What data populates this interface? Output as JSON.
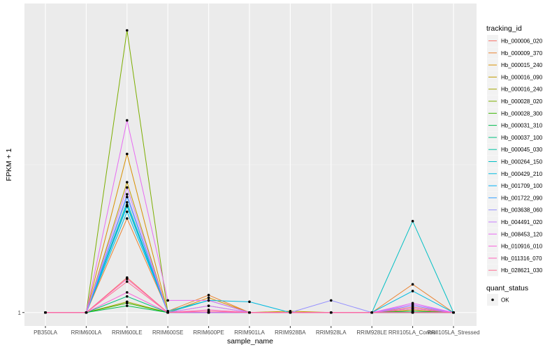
{
  "chart_data": {
    "type": "line",
    "xlabel": "sample_name",
    "ylabel": "FPKM + 1",
    "categories": [
      "PB350LA",
      "RRIM600LA",
      "RRIM600LE",
      "RRIM600SE",
      "RRIM600PE",
      "RRIM901LA",
      "RRIM928BA",
      "RRIM928LA",
      "RRIM928LE",
      "RRII105LA_Control",
      "RRII105LA_Stressed"
    ],
    "y_tick_labels": [
      "1"
    ],
    "y_ticks": [
      1
    ],
    "ylim": [
      0,
      24
    ],
    "grid": true,
    "background": "#ebebeb",
    "legend_placement": "right",
    "legend": {
      "title": "tracking_id",
      "entries": [
        "Hb_000006_020",
        "Hb_000009_370",
        "Hb_000015_240",
        "Hb_000016_090",
        "Hb_000016_240",
        "Hb_000028_020",
        "Hb_000028_300",
        "Hb_000031_310",
        "Hb_000037_100",
        "Hb_000045_030",
        "Hb_000264_150",
        "Hb_000429_210",
        "Hb_001709_100",
        "Hb_001722_090",
        "Hb_003638_060",
        "Hb_004491_020",
        "Hb_008453_120",
        "Hb_010916_010",
        "Hb_011316_070",
        "Hb_028621_030"
      ]
    },
    "shape_legend": {
      "title": "quant_status",
      "entries": [
        "OK"
      ]
    },
    "series": [
      {
        "name": "Hb_000006_020",
        "color": "#F8766D",
        "values": [
          1,
          1,
          3.6,
          1,
          1.5,
          1,
          1,
          1,
          1,
          1.4,
          1
        ]
      },
      {
        "name": "Hb_000009_370",
        "color": "#EA8331",
        "values": [
          1,
          1,
          8.0,
          1.1,
          2.3,
          1,
          1,
          1,
          1,
          3.1,
          1
        ]
      },
      {
        "name": "Hb_000015_240",
        "color": "#D89000",
        "values": [
          1,
          1,
          12.8,
          1,
          2.1,
          1,
          1,
          1,
          1,
          1.2,
          1
        ]
      },
      {
        "name": "Hb_000016_090",
        "color": "#C09B00",
        "values": [
          1,
          1,
          10.7,
          1,
          1,
          1,
          1.1,
          1,
          1,
          1.1,
          1
        ]
      },
      {
        "name": "Hb_000016_240",
        "color": "#A3A500",
        "values": [
          1,
          1,
          1.8,
          1,
          1,
          1,
          1,
          1,
          1,
          1,
          1
        ]
      },
      {
        "name": "Hb_000028_020",
        "color": "#7CAE00",
        "values": [
          1,
          1,
          22.0,
          1,
          1,
          1,
          1,
          1,
          1,
          1,
          1
        ]
      },
      {
        "name": "Hb_000028_300",
        "color": "#39B600",
        "values": [
          1,
          1,
          1.7,
          1,
          1,
          1,
          1,
          1,
          1,
          1,
          1
        ]
      },
      {
        "name": "Hb_000031_310",
        "color": "#00BB4E",
        "values": [
          1,
          1,
          1.5,
          1,
          1,
          1,
          1,
          1,
          1,
          1.1,
          1
        ]
      },
      {
        "name": "Hb_000037_100",
        "color": "#00BF7D",
        "values": [
          1,
          1,
          2.2,
          1,
          1,
          1,
          1,
          1,
          1,
          1,
          1
        ]
      },
      {
        "name": "Hb_000045_030",
        "color": "#00C1A3",
        "values": [
          1,
          1,
          9.2,
          1,
          1,
          1,
          1,
          1,
          1,
          1,
          1
        ]
      },
      {
        "name": "Hb_000264_150",
        "color": "#00BFC4",
        "values": [
          1,
          1,
          8.9,
          1,
          1.9,
          1,
          1,
          1,
          1,
          7.8,
          1
        ]
      },
      {
        "name": "Hb_000429_210",
        "color": "#00BAE0",
        "values": [
          1,
          1,
          8.5,
          1.1,
          1.9,
          1.8,
          1,
          1,
          1,
          2.6,
          1
        ]
      },
      {
        "name": "Hb_001709_100",
        "color": "#00B0F6",
        "values": [
          1,
          1,
          9.0,
          1,
          1,
          1,
          1,
          1,
          1,
          1,
          1
        ]
      },
      {
        "name": "Hb_001722_090",
        "color": "#35A2FF",
        "values": [
          1,
          1,
          9.6,
          1,
          1,
          1,
          1,
          1,
          1,
          1.3,
          1
        ]
      },
      {
        "name": "Hb_003638_060",
        "color": "#9590FF",
        "values": [
          1,
          1,
          9.8,
          1,
          1,
          1,
          1,
          1.9,
          1,
          1.5,
          1
        ]
      },
      {
        "name": "Hb_004491_020",
        "color": "#C77CFF",
        "values": [
          1,
          1,
          10.3,
          1,
          1.5,
          1,
          1,
          1,
          1,
          1.6,
          1
        ]
      },
      {
        "name": "Hb_008453_120",
        "color": "#E76BF3",
        "values": [
          1,
          1,
          15.3,
          1.9,
          1.9,
          1,
          1,
          1,
          1,
          1.7,
          1
        ]
      },
      {
        "name": "Hb_010916_010",
        "color": "#FA62DB",
        "values": [
          1,
          1,
          2.5,
          1,
          1,
          1,
          1,
          1,
          1,
          1.3,
          1
        ]
      },
      {
        "name": "Hb_011316_070",
        "color": "#FF62BC",
        "values": [
          1,
          1,
          3.5,
          1,
          1.2,
          1,
          1,
          1,
          1,
          1,
          1
        ]
      },
      {
        "name": "Hb_028621_030",
        "color": "#FF6C91",
        "values": [
          1,
          1,
          3.3,
          1,
          1.1,
          1,
          1,
          1,
          1,
          1,
          1
        ]
      }
    ]
  }
}
